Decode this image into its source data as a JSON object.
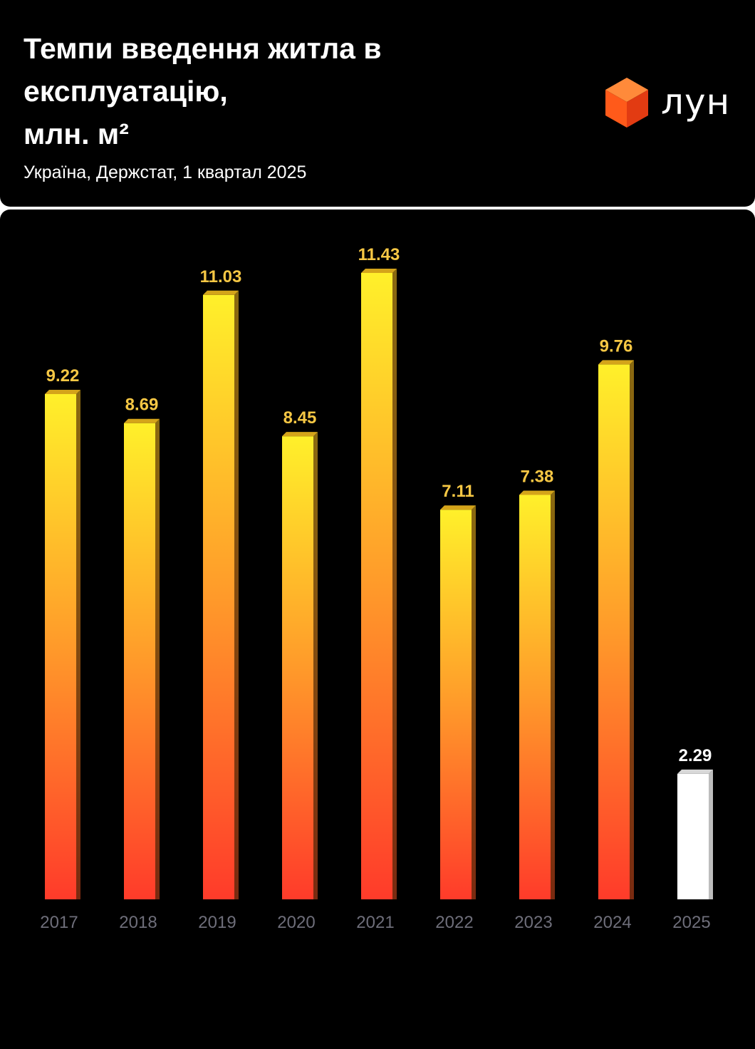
{
  "header": {
    "title": "Темпи введення житла в\nексплуатацію,\nмлн. м²",
    "subtitle": "Україна, Держстат, 1 квартал 2025",
    "brand_name": "лун",
    "brand_icon": "orange-cube-icon"
  },
  "colors": {
    "background": "#000000",
    "bar_top": "#fff02a",
    "bar_mid": "#ff9a2a",
    "bar_bottom": "#ff3b2a",
    "value_label": "#f6c744",
    "highlight_bar": "#ffffff",
    "axis_label": "#6e6e7a",
    "brand": "#ff5a1a"
  },
  "chart_data": {
    "type": "bar",
    "title": "Темпи введення житла в експлуатацію, млн. м²",
    "xlabel": "",
    "ylabel": "",
    "categories": [
      "2017",
      "2018",
      "2019",
      "2020",
      "2021",
      "2022",
      "2023",
      "2024",
      "2025"
    ],
    "values": [
      9.22,
      8.69,
      11.03,
      8.45,
      11.43,
      7.11,
      7.38,
      9.76,
      2.29
    ],
    "value_labels": [
      "9.22",
      "8.69",
      "11.03",
      "8.45",
      "11.43",
      "7.11",
      "7.38",
      "9.76",
      "2.29"
    ],
    "highlight": "2025",
    "ylim": [
      0,
      11.43
    ],
    "grid": false,
    "legend": "none"
  }
}
